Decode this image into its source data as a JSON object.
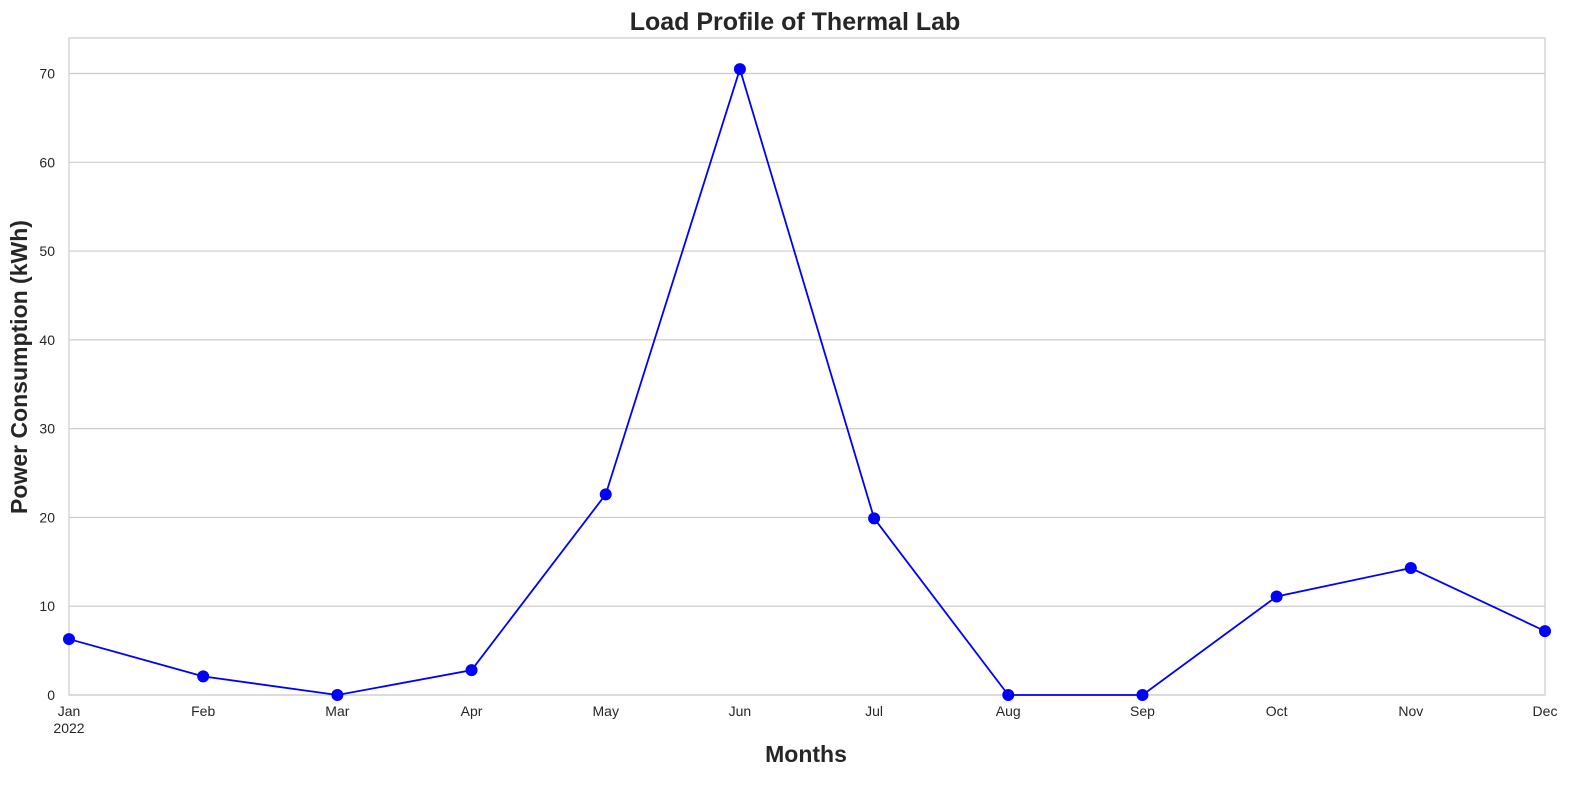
{
  "chart_data": {
    "type": "line",
    "title": "Load Profile of Thermal Lab",
    "xlabel": "Months",
    "ylabel": "Power Consumption (kWh)",
    "x_tick_labels": [
      "Jan",
      "Feb",
      "Mar",
      "Apr",
      "May",
      "Jun",
      "Jul",
      "Aug",
      "Sep",
      "Oct",
      "Nov",
      "Dec"
    ],
    "x_year_label": "2022",
    "y_ticks": [
      0,
      10,
      20,
      30,
      40,
      50,
      60,
      70
    ],
    "ylim": [
      0,
      74
    ],
    "grid": "horizontal",
    "series": [
      {
        "color": "#0000ff",
        "marker": "circle",
        "x": [
          "2022-01",
          "2022-02",
          "2022-03",
          "2022-04",
          "2022-05",
          "2022-06",
          "2022-07",
          "2022-08",
          "2022-09",
          "2022-10",
          "2022-11",
          "2022-12"
        ],
        "values": [
          6.3,
          2.1,
          0,
          2.8,
          22.6,
          70.5,
          19.9,
          0,
          0,
          11.1,
          14.3,
          7.2
        ]
      }
    ]
  }
}
